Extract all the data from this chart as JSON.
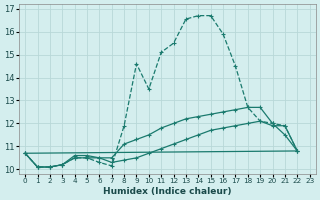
{
  "xlabel": "Humidex (Indice chaleur)",
  "bg_color": "#d4eeee",
  "grid_color": "#b8d8d8",
  "line_color": "#1a7a6e",
  "xlim": [
    -0.5,
    23.5
  ],
  "ylim": [
    9.8,
    17.2
  ],
  "xticks": [
    0,
    1,
    2,
    3,
    4,
    5,
    6,
    7,
    8,
    9,
    10,
    11,
    12,
    13,
    14,
    15,
    16,
    17,
    18,
    19,
    20,
    21,
    22,
    23
  ],
  "yticks": [
    10,
    11,
    12,
    13,
    14,
    15,
    16,
    17
  ],
  "series": [
    {
      "x": [
        0,
        1,
        2,
        3,
        4,
        5,
        6,
        7,
        8,
        9,
        10,
        11,
        12,
        13,
        14,
        15,
        16,
        17,
        18,
        19,
        20,
        21,
        22
      ],
      "y": [
        10.7,
        10.1,
        10.1,
        10.2,
        10.5,
        10.5,
        10.3,
        10.15,
        11.9,
        14.6,
        13.5,
        15.1,
        15.5,
        16.55,
        16.7,
        16.7,
        15.9,
        14.5,
        12.7,
        12.1,
        12.0,
        11.9,
        10.8
      ],
      "style": "dashed_marker"
    },
    {
      "x": [
        0,
        1,
        2,
        3,
        4,
        5,
        6,
        7,
        8,
        9,
        10,
        11,
        12,
        13,
        14,
        15,
        16,
        17,
        18,
        19,
        20,
        21,
        22
      ],
      "y": [
        10.7,
        10.1,
        10.1,
        10.2,
        10.6,
        10.6,
        10.5,
        10.5,
        11.1,
        11.3,
        11.5,
        11.8,
        12.0,
        12.2,
        12.3,
        12.4,
        12.5,
        12.6,
        12.7,
        12.7,
        12.0,
        11.5,
        10.8
      ],
      "style": "solid_marker"
    },
    {
      "x": [
        0,
        1,
        2,
        3,
        4,
        5,
        6,
        7,
        8,
        9,
        10,
        11,
        12,
        13,
        14,
        15,
        16,
        17,
        18,
        19,
        20,
        21,
        22
      ],
      "y": [
        10.7,
        10.1,
        10.1,
        10.2,
        10.5,
        10.5,
        10.5,
        10.3,
        10.4,
        10.5,
        10.7,
        10.9,
        11.1,
        11.3,
        11.5,
        11.7,
        11.8,
        11.9,
        12.0,
        12.1,
        11.9,
        11.9,
        10.8
      ],
      "style": "solid_marker"
    },
    {
      "x": [
        0,
        22
      ],
      "y": [
        10.7,
        10.8
      ],
      "style": "solid_plain"
    }
  ]
}
